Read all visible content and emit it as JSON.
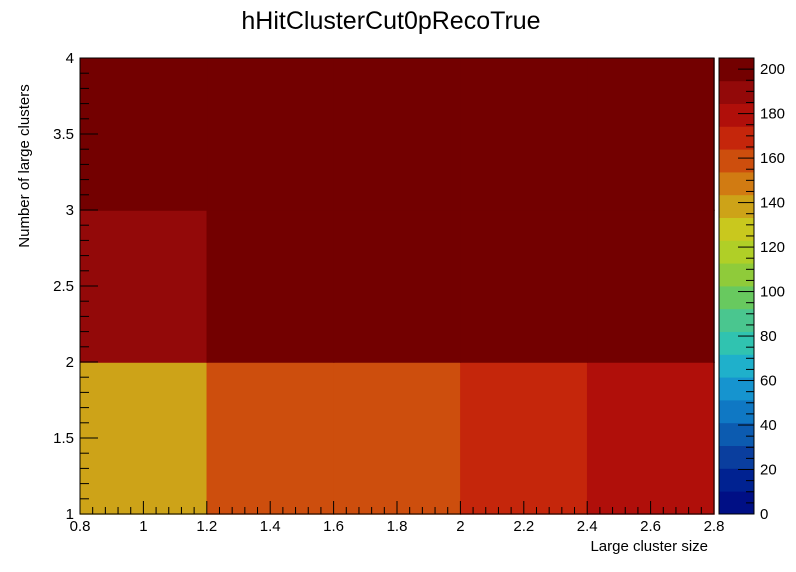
{
  "chart_data": {
    "type": "heatmap",
    "title": "hHitClusterCut0pRecoTrue",
    "xlabel": "Large cluster size",
    "ylabel": "Number of large clusters",
    "xlim": [
      0.8,
      2.8
    ],
    "ylim": [
      1,
      4
    ],
    "x_ticks": [
      "0.8",
      "1",
      "1.2",
      "1.4",
      "1.6",
      "1.8",
      "2",
      "2.2",
      "2.4",
      "2.6",
      "2.8"
    ],
    "y_ticks": [
      "1",
      "1.5",
      "2",
      "2.5",
      "3",
      "3.5",
      "4"
    ],
    "x_bin_edges": [
      0.8,
      1.2,
      1.6,
      2.0,
      2.4,
      2.8
    ],
    "y_bin_edges": [
      1,
      2,
      3,
      4
    ],
    "z": [
      [
        140,
        155,
        155,
        170,
        180
      ],
      [
        190,
        200,
        200,
        200,
        200
      ],
      [
        200,
        200,
        200,
        200,
        200
      ]
    ],
    "zlim": [
      0,
      205
    ],
    "colorbar_ticks": [
      "0",
      "20",
      "40",
      "60",
      "80",
      "100",
      "120",
      "140",
      "160",
      "180",
      "200"
    ],
    "colorbar_colors": [
      "#000f85",
      "#002291",
      "#0a3e9e",
      "#0c5bb0",
      "#0f78c4",
      "#1694cf",
      "#1fb0cb",
      "#30c3b0",
      "#4ac68f",
      "#68c95f",
      "#8fcb3a",
      "#b0cf27",
      "#c9c81e",
      "#cda318",
      "#d17b12",
      "#cd4e0d",
      "#c5260b",
      "#b00f0a",
      "#930909",
      "#730000"
    ]
  }
}
